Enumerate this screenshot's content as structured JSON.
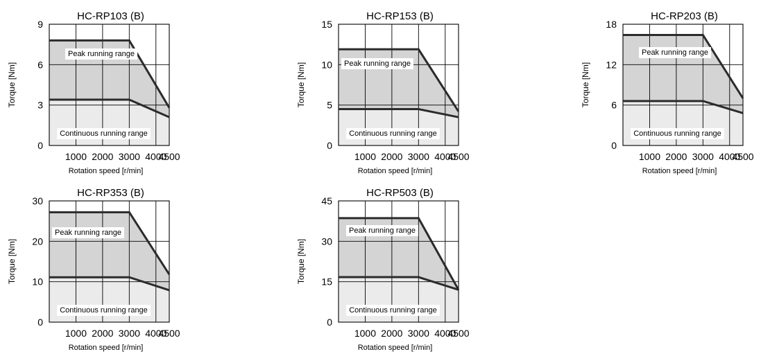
{
  "chart_data": [
    {
      "type": "area",
      "title": "HC-RP103 (B)",
      "xlabel": "Rotation speed [r/min]",
      "ylabel": "Torque [Nm]",
      "xlim": [
        0,
        4500
      ],
      "ylim": [
        0,
        9
      ],
      "xticks": [
        1000,
        2000,
        3000,
        4000,
        4500
      ],
      "yticks": [
        0,
        3,
        6,
        9
      ],
      "grid": true,
      "series": [
        {
          "name": "Peak running range",
          "x": [
            0,
            3000,
            4500
          ],
          "y": [
            7.8,
            7.8,
            2.8
          ]
        },
        {
          "name": "Continuous running range",
          "x": [
            0,
            3000,
            4500
          ],
          "y": [
            3.4,
            3.4,
            2.1
          ]
        }
      ]
    },
    {
      "type": "area",
      "title": "HC-RP153 (B)",
      "xlabel": "Rotation speed [r/min]",
      "ylabel": "Torque [Nm]",
      "xlim": [
        0,
        4500
      ],
      "ylim": [
        0,
        15
      ],
      "xticks": [
        1000,
        2000,
        3000,
        4000,
        4500
      ],
      "yticks": [
        0,
        5,
        10,
        15
      ],
      "grid": true,
      "series": [
        {
          "name": "Peak running range",
          "x": [
            0,
            3000,
            4500
          ],
          "y": [
            11.9,
            11.9,
            4.2
          ]
        },
        {
          "name": "Continuous running range",
          "x": [
            0,
            3000,
            4500
          ],
          "y": [
            4.5,
            4.5,
            3.5
          ]
        }
      ]
    },
    {
      "type": "area",
      "title": "HC-RP203 (B)",
      "xlabel": "Rotation speed [r/min]",
      "ylabel": "Torque [Nm]",
      "xlim": [
        0,
        4500
      ],
      "ylim": [
        0,
        18
      ],
      "xticks": [
        1000,
        2000,
        3000,
        4000,
        4500
      ],
      "yticks": [
        0,
        6,
        12,
        18
      ],
      "grid": true,
      "series": [
        {
          "name": "Peak running range",
          "x": [
            0,
            3000,
            4500
          ],
          "y": [
            16.4,
            16.4,
            7.0
          ]
        },
        {
          "name": "Continuous running range",
          "x": [
            0,
            3000,
            4500
          ],
          "y": [
            6.6,
            6.6,
            4.8
          ]
        }
      ]
    },
    {
      "type": "area",
      "title": "HC-RP353 (B)",
      "xlabel": "Rotation speed [r/min]",
      "ylabel": "Torque [Nm]",
      "xlim": [
        0,
        4500
      ],
      "ylim": [
        0,
        30
      ],
      "xticks": [
        1000,
        2000,
        3000,
        4000,
        4500
      ],
      "yticks": [
        0,
        10,
        20,
        30
      ],
      "grid": true,
      "series": [
        {
          "name": "Peak running range",
          "x": [
            0,
            3000,
            4500
          ],
          "y": [
            27.2,
            27.2,
            11.8
          ]
        },
        {
          "name": "Continuous running range",
          "x": [
            0,
            3000,
            4500
          ],
          "y": [
            11.1,
            11.1,
            7.9
          ]
        }
      ]
    },
    {
      "type": "area",
      "title": "HC-RP503 (B)",
      "xlabel": "Rotation speed [r/min]",
      "ylabel": "Torque [Nm]",
      "xlim": [
        0,
        4500
      ],
      "ylim": [
        0,
        45
      ],
      "xticks": [
        1000,
        2000,
        3000,
        4000,
        4500
      ],
      "yticks": [
        0,
        15,
        30,
        45
      ],
      "grid": true,
      "series": [
        {
          "name": "Peak running range",
          "x": [
            0,
            3000,
            4500
          ],
          "y": [
            38.6,
            38.6,
            12.0
          ]
        },
        {
          "name": "Continuous running range",
          "x": [
            0,
            3000,
            4500
          ],
          "y": [
            16.7,
            16.7,
            12.0
          ]
        }
      ]
    }
  ],
  "colors": {
    "peak_fill": "#d4d4d4",
    "continuous_fill": "#ebebeb",
    "curve": "#2b2b2b",
    "grid": "#000000",
    "label_box": "#ffffff"
  }
}
